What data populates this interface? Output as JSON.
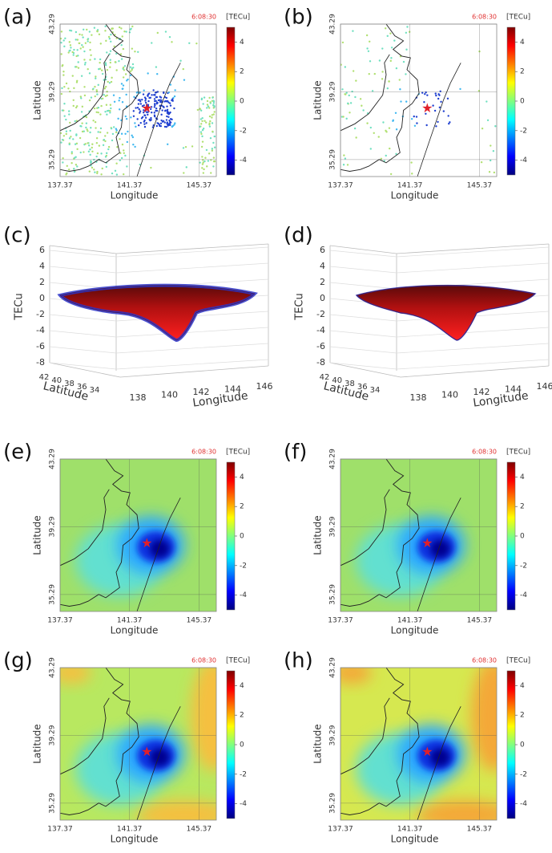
{
  "chart_data": [
    {
      "type": "map",
      "label": "(a)",
      "time": "6:08:30",
      "x_label": "Longitude",
      "y_label": "Latitude",
      "xlim": [
        137.37,
        146.37
      ],
      "ylim": [
        34.29,
        43.29
      ],
      "xticks": [
        137.37,
        141.37,
        145.37
      ],
      "yticks": [
        35.29,
        39.29,
        43.29
      ],
      "colorbar_label": "[TECu]",
      "clim": [
        -5,
        5
      ],
      "cticks": [
        4,
        2,
        0,
        -2,
        -4
      ]
    },
    {
      "type": "map",
      "label": "(b)",
      "time": "6:08:30",
      "x_label": "Longitude",
      "y_label": "Latitude",
      "xlim": [
        137.37,
        146.37
      ],
      "ylim": [
        34.29,
        43.29
      ],
      "xticks": [
        137.37,
        141.37,
        145.37
      ],
      "yticks": [
        35.29,
        39.29,
        43.29
      ],
      "colorbar_label": "[TECu]",
      "clim": [
        -5,
        5
      ],
      "cticks": [
        4,
        2,
        0,
        -2,
        -4
      ]
    },
    {
      "type": "surface",
      "label": "(c)",
      "z_label": "TECu",
      "zlim": [
        -8,
        6
      ],
      "zticks": [
        6,
        4,
        2,
        0,
        -2,
        -4,
        -6,
        -8
      ],
      "y_label": "Latitude",
      "yticks": [
        42,
        40,
        38,
        36,
        34
      ],
      "x_label": "Longitude",
      "xticks": [
        138,
        140,
        142,
        144,
        146
      ]
    },
    {
      "type": "surface",
      "label": "(d)",
      "z_label": "TECu",
      "zlim": [
        -8,
        6
      ],
      "zticks": [
        6,
        4,
        2,
        0,
        -2,
        -4,
        -6,
        -8
      ],
      "y_label": "Latitude",
      "yticks": [
        42,
        40,
        38,
        36,
        34
      ],
      "x_label": "Longitude",
      "xticks": [
        138,
        140,
        142,
        144,
        146
      ]
    },
    {
      "type": "map",
      "label": "(e)",
      "time": "6:08:30",
      "x_label": "Longitude",
      "y_label": "Latitude",
      "xlim": [
        137.37,
        146.37
      ],
      "ylim": [
        34.29,
        43.29
      ],
      "xticks": [
        137.37,
        141.37,
        145.37
      ],
      "yticks": [
        35.29,
        39.29,
        43.29
      ],
      "colorbar_label": "[TECu]",
      "clim": [
        -5,
        5
      ],
      "cticks": [
        4,
        2,
        0,
        -2,
        -4
      ]
    },
    {
      "type": "map",
      "label": "(f)",
      "time": "6:08:30",
      "x_label": "Longitude",
      "y_label": "Latitude",
      "xlim": [
        137.37,
        146.37
      ],
      "ylim": [
        34.29,
        43.29
      ],
      "xticks": [
        137.37,
        141.37,
        145.37
      ],
      "yticks": [
        35.29,
        39.29,
        43.29
      ],
      "colorbar_label": "[TECu]",
      "clim": [
        -5,
        5
      ],
      "cticks": [
        4,
        2,
        0,
        -2,
        -4
      ]
    },
    {
      "type": "map",
      "label": "(g)",
      "time": "6:08:30",
      "x_label": "Longitude",
      "y_label": "Latitude",
      "xlim": [
        137.37,
        146.37
      ],
      "ylim": [
        34.29,
        43.29
      ],
      "xticks": [
        137.37,
        141.37,
        145.37
      ],
      "yticks": [
        35.29,
        39.29,
        43.29
      ],
      "colorbar_label": "[TECu]",
      "clim": [
        -5,
        5
      ],
      "cticks": [
        4,
        2,
        0,
        -2,
        -4
      ]
    },
    {
      "type": "map",
      "label": "(h)",
      "time": "6:08:30",
      "x_label": "Longitude",
      "y_label": "Latitude",
      "xlim": [
        137.37,
        146.37
      ],
      "ylim": [
        34.29,
        43.29
      ],
      "xticks": [
        137.37,
        141.37,
        145.37
      ],
      "yticks": [
        35.29,
        39.29,
        43.29
      ],
      "colorbar_label": "[TECu]",
      "clim": [
        -5,
        5
      ],
      "cticks": [
        4,
        2,
        0,
        -2,
        -4
      ]
    }
  ]
}
